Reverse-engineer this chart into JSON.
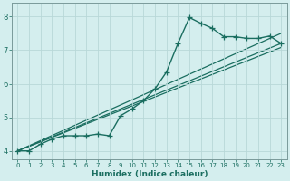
{
  "title": "",
  "xlabel": "Humidex (Indice chaleur)",
  "ylabel": "",
  "bg_color": "#d4eeee",
  "grid_color": "#b8d8d8",
  "line_color": "#1a6e60",
  "spine_color": "#7a9a9a",
  "xlim": [
    -0.5,
    23.5
  ],
  "ylim": [
    3.75,
    8.4
  ],
  "yticks": [
    4,
    5,
    6,
    7,
    8
  ],
  "xticks": [
    0,
    1,
    2,
    3,
    4,
    5,
    6,
    7,
    8,
    9,
    10,
    11,
    12,
    13,
    14,
    15,
    16,
    17,
    18,
    19,
    20,
    21,
    22,
    23
  ],
  "series_main": {
    "x": [
      0,
      1,
      2,
      3,
      4,
      5,
      6,
      7,
      8,
      9,
      10,
      11,
      12,
      13,
      14,
      15,
      16,
      17,
      18,
      19,
      20,
      21,
      22,
      23
    ],
    "y": [
      4.0,
      4.0,
      4.2,
      4.35,
      4.45,
      4.45,
      4.45,
      4.5,
      4.45,
      5.05,
      5.25,
      5.5,
      5.85,
      6.35,
      7.2,
      7.97,
      7.8,
      7.65,
      7.4,
      7.4,
      7.35,
      7.35,
      7.42,
      7.2
    ]
  },
  "lines_straight": [
    {
      "x": [
        0,
        23
      ],
      "y": [
        4.0,
        7.2
      ]
    },
    {
      "x": [
        0,
        23
      ],
      "y": [
        4.0,
        7.5
      ]
    },
    {
      "x": [
        0,
        23
      ],
      "y": [
        4.0,
        7.08
      ]
    }
  ]
}
